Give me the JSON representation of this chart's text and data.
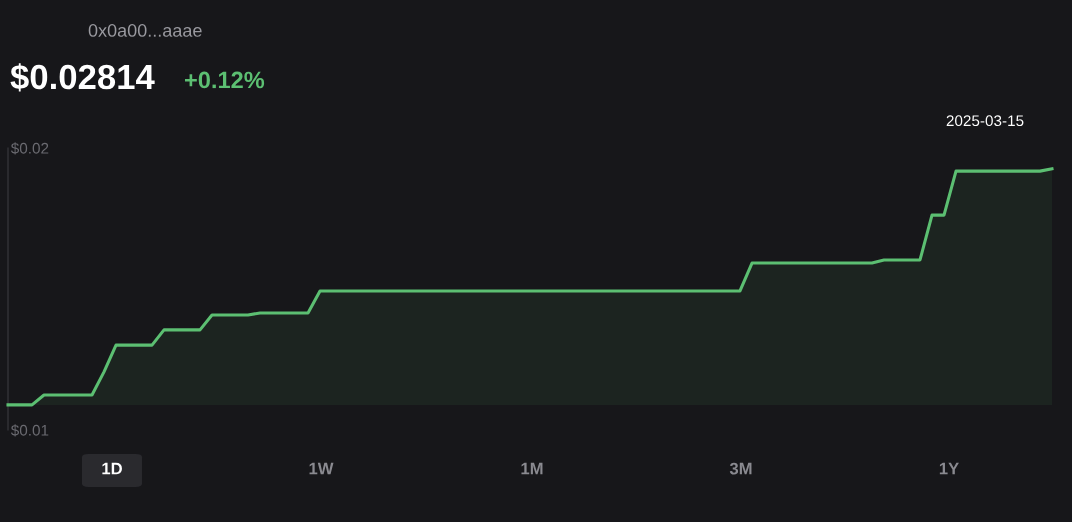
{
  "chart_data": {
    "type": "line",
    "title": "$0.02814",
    "subtitle": "+0.12%",
    "categories": [
      null,
      null,
      null,
      null,
      null,
      null,
      null,
      null,
      null,
      null,
      null,
      null,
      null,
      null,
      null,
      null,
      null,
      null,
      null,
      null,
      null,
      null,
      null,
      null,
      null,
      null,
      null,
      null,
      null,
      null,
      null,
      null,
      null,
      null,
      null,
      null,
      null,
      null,
      null,
      null,
      null,
      null,
      null,
      null,
      null,
      null,
      null,
      null,
      null,
      null,
      null,
      null,
      null,
      null,
      null,
      null,
      null,
      null,
      null,
      null,
      null,
      null,
      null,
      null,
      null,
      null,
      null,
      null,
      null,
      null,
      null,
      null,
      null,
      null,
      null,
      null,
      null,
      null,
      null,
      null,
      null,
      null,
      null,
      null,
      null,
      null,
      null,
      null
    ],
    "series": [
      {
        "color": "#5cbf72",
        "values": [
          0.01089,
          0.01089,
          0.01089,
          0.01124,
          0.01124,
          0.01124,
          0.01124,
          0.01124,
          0.01206,
          0.01301,
          0.01301,
          0.01301,
          0.01301,
          0.01355,
          0.01355,
          0.01355,
          0.01355,
          0.01408,
          0.01408,
          0.01408,
          0.01408,
          0.01415,
          0.01415,
          0.01415,
          0.01415,
          0.01415,
          0.01493,
          0.01493,
          0.01493,
          0.01493,
          0.01493,
          0.01493,
          0.01493,
          0.01493,
          0.01493,
          0.01493,
          0.01493,
          0.01493,
          0.01493,
          0.01493,
          0.01493,
          0.01493,
          0.01493,
          0.01493,
          0.01493,
          0.01493,
          0.01493,
          0.01493,
          0.01493,
          0.01493,
          0.01493,
          0.01493,
          0.01493,
          0.01493,
          0.01493,
          0.01493,
          0.01493,
          0.01493,
          0.01493,
          0.01493,
          0.01493,
          0.01493,
          0.01592,
          0.01592,
          0.01592,
          0.01592,
          0.01592,
          0.01592,
          0.01592,
          0.01592,
          0.01592,
          0.01592,
          0.01592,
          0.01603,
          0.01603,
          0.01603,
          0.01603,
          0.01762,
          0.01762,
          0.01918,
          0.01918,
          0.01918,
          0.01918,
          0.01918,
          0.01918,
          0.01918,
          0.01918,
          0.01926
        ]
      }
    ],
    "ylim": [
      0.01,
      0.02
    ],
    "yticks": [
      {
        "value": 0.01,
        "label": "$0.01"
      },
      {
        "value": 0.02,
        "label": "$0.02"
      }
    ],
    "annotations": [
      "0x0a00...aaae",
      "2025-03-15",
      "1D",
      "1W",
      "1M",
      "3M",
      "1Y"
    ],
    "marker": "none",
    "line_style": "solid",
    "tick_labels": "y"
  }
}
